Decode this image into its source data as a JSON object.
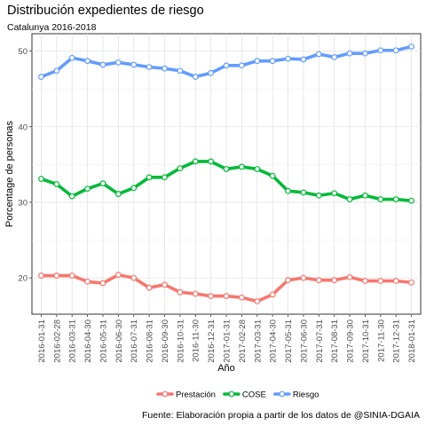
{
  "chart_data": {
    "type": "line",
    "title": "Distribución expedientes de riesgo",
    "subtitle": "Catalunya 2016-2018",
    "xlabel": "Año",
    "ylabel": "Porcentage de personas",
    "caption": "Fuente: Elaboración propia a partir de los datos de @SINIA-DGAIA",
    "legend_position": "bottom",
    "grid": true,
    "ylim": [
      15.2,
      52.3
    ],
    "yticks": [
      20,
      30,
      40,
      50
    ],
    "categories": [
      "2016-01-31",
      "2016-02-28",
      "2016-03-31",
      "2016-04-30",
      "2016-05-31",
      "2016-06-30",
      "2016-07-31",
      "2016-08-31",
      "2016-09-30",
      "2016-10-31",
      "2016-11-30",
      "2016-12-31",
      "2017-01-31",
      "2017-02-28",
      "2017-03-31",
      "2017-04-30",
      "2017-05-31",
      "2017-06-30",
      "2017-07-31",
      "2017-08-31",
      "2017-09-30",
      "2017-10-31",
      "2017-11-30",
      "2017-12-31",
      "2018-01-31"
    ],
    "series": [
      {
        "name": "Prestación",
        "color": "#F8766D",
        "values": [
          20.3,
          20.3,
          20.3,
          19.5,
          19.3,
          20.4,
          20.0,
          18.7,
          19.1,
          18.1,
          17.9,
          17.6,
          17.6,
          17.4,
          16.9,
          17.8,
          19.7,
          20.0,
          19.7,
          19.7,
          20.1,
          19.6,
          19.6,
          19.6,
          19.4
        ]
      },
      {
        "name": "COSE",
        "color": "#00BA38",
        "values": [
          33.1,
          32.4,
          30.8,
          31.8,
          32.5,
          31.1,
          31.9,
          33.3,
          33.3,
          34.5,
          35.4,
          35.4,
          34.4,
          34.7,
          34.4,
          33.5,
          31.5,
          31.3,
          30.9,
          31.2,
          30.4,
          30.9,
          30.4,
          30.4,
          30.2
        ]
      },
      {
        "name": "Riesgo",
        "color": "#619CFF",
        "values": [
          46.6,
          47.4,
          49.1,
          48.7,
          48.2,
          48.5,
          48.2,
          47.9,
          47.7,
          47.4,
          46.6,
          47.1,
          48.1,
          48.1,
          48.7,
          48.7,
          49.0,
          48.9,
          49.6,
          49.2,
          49.7,
          49.7,
          50.1,
          50.1,
          50.6
        ]
      }
    ]
  }
}
